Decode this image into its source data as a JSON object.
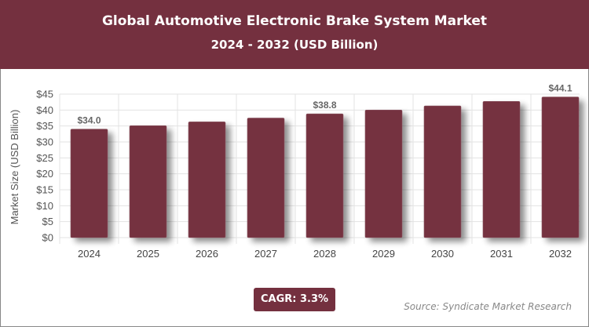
{
  "header": {
    "title": "Global Automotive Electronic Brake System Market",
    "subtitle": "2024 - 2032 (USD Billion)"
  },
  "chart_data": {
    "type": "bar",
    "categories": [
      "2024",
      "2025",
      "2026",
      "2027",
      "2028",
      "2029",
      "2030",
      "2031",
      "2032"
    ],
    "values": [
      34.0,
      35.1,
      36.3,
      37.5,
      38.8,
      40.0,
      41.3,
      42.7,
      44.1
    ],
    "data_labels": {
      "0": "$34.0",
      "4": "$38.8",
      "8": "$44.1"
    },
    "xlabel": "",
    "ylabel": "Market Size (USD Billion)",
    "ylim": [
      0,
      45
    ],
    "yticks": [
      "$0",
      "$5",
      "$10",
      "$15",
      "$20",
      "$25",
      "$30",
      "$35",
      "$40",
      "$45"
    ],
    "grid": true,
    "bar_color": "#74303f"
  },
  "cagr": "CAGR: 3.3%",
  "source": "Source: Syndicate Market Research"
}
